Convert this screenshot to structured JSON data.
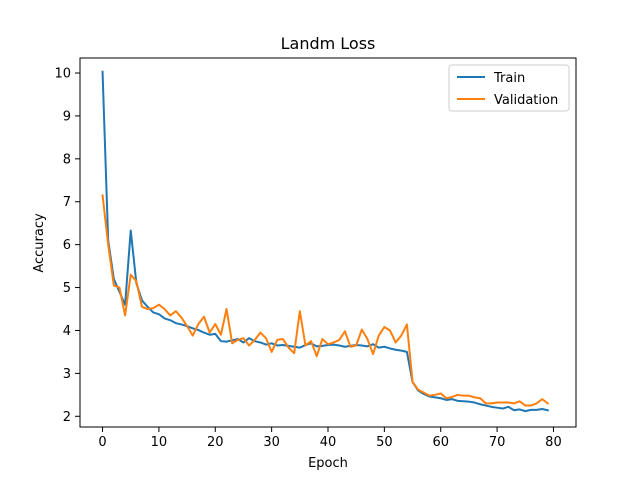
{
  "chart_data": {
    "type": "line",
    "title": "Landm Loss",
    "xlabel": "Epoch",
    "ylabel": "Accuracy",
    "xlim": [
      -4,
      84
    ],
    "ylim": [
      1.75,
      10.35
    ],
    "xticks": [
      0,
      10,
      20,
      30,
      40,
      50,
      60,
      70,
      80
    ],
    "yticks": [
      2,
      3,
      4,
      5,
      6,
      7,
      8,
      9,
      10
    ],
    "grid": false,
    "legend_position": "top-right",
    "x": [
      0,
      1,
      2,
      3,
      4,
      5,
      6,
      7,
      8,
      9,
      10,
      11,
      12,
      13,
      14,
      15,
      16,
      17,
      18,
      19,
      20,
      21,
      22,
      23,
      24,
      25,
      26,
      27,
      28,
      29,
      30,
      31,
      32,
      33,
      34,
      35,
      36,
      37,
      38,
      39,
      40,
      41,
      42,
      43,
      44,
      45,
      46,
      47,
      48,
      49,
      50,
      51,
      52,
      53,
      54,
      55,
      56,
      57,
      58,
      59,
      60,
      61,
      62,
      63,
      64,
      65,
      66,
      67,
      68,
      69,
      70,
      71,
      72,
      73,
      74,
      75,
      76,
      77,
      78,
      79
    ],
    "series": [
      {
        "name": "Train",
        "color": "#1f77b4",
        "values": [
          10.03,
          6.1,
          5.2,
          4.9,
          4.6,
          6.33,
          5.1,
          4.7,
          4.55,
          4.42,
          4.38,
          4.28,
          4.24,
          4.17,
          4.14,
          4.1,
          4.05,
          4.01,
          3.95,
          3.9,
          3.92,
          3.75,
          3.74,
          3.77,
          3.8,
          3.72,
          3.82,
          3.75,
          3.72,
          3.67,
          3.7,
          3.65,
          3.66,
          3.64,
          3.62,
          3.6,
          3.66,
          3.7,
          3.63,
          3.64,
          3.66,
          3.67,
          3.65,
          3.62,
          3.64,
          3.66,
          3.65,
          3.63,
          3.68,
          3.6,
          3.62,
          3.58,
          3.55,
          3.53,
          3.5,
          2.8,
          2.6,
          2.52,
          2.46,
          2.44,
          2.42,
          2.38,
          2.4,
          2.36,
          2.35,
          2.34,
          2.32,
          2.28,
          2.25,
          2.22,
          2.2,
          2.18,
          2.22,
          2.14,
          2.16,
          2.12,
          2.15,
          2.15,
          2.17,
          2.14
        ]
      },
      {
        "name": "Validation",
        "color": "#ff7f0e",
        "values": [
          7.15,
          6.0,
          5.05,
          5.0,
          4.35,
          5.3,
          5.15,
          4.55,
          4.5,
          4.52,
          4.6,
          4.5,
          4.35,
          4.45,
          4.3,
          4.1,
          3.88,
          4.15,
          4.32,
          3.95,
          4.15,
          3.9,
          4.5,
          3.7,
          3.78,
          3.82,
          3.65,
          3.78,
          3.95,
          3.82,
          3.5,
          3.78,
          3.8,
          3.6,
          3.47,
          4.45,
          3.65,
          3.75,
          3.4,
          3.8,
          3.68,
          3.72,
          3.78,
          3.98,
          3.62,
          3.65,
          4.02,
          3.8,
          3.45,
          3.88,
          4.08,
          4.0,
          3.72,
          3.88,
          4.14,
          2.8,
          2.62,
          2.55,
          2.48,
          2.5,
          2.53,
          2.42,
          2.45,
          2.5,
          2.48,
          2.48,
          2.44,
          2.42,
          2.3,
          2.3,
          2.32,
          2.32,
          2.32,
          2.3,
          2.35,
          2.25,
          2.25,
          2.3,
          2.4,
          2.3
        ]
      }
    ]
  }
}
